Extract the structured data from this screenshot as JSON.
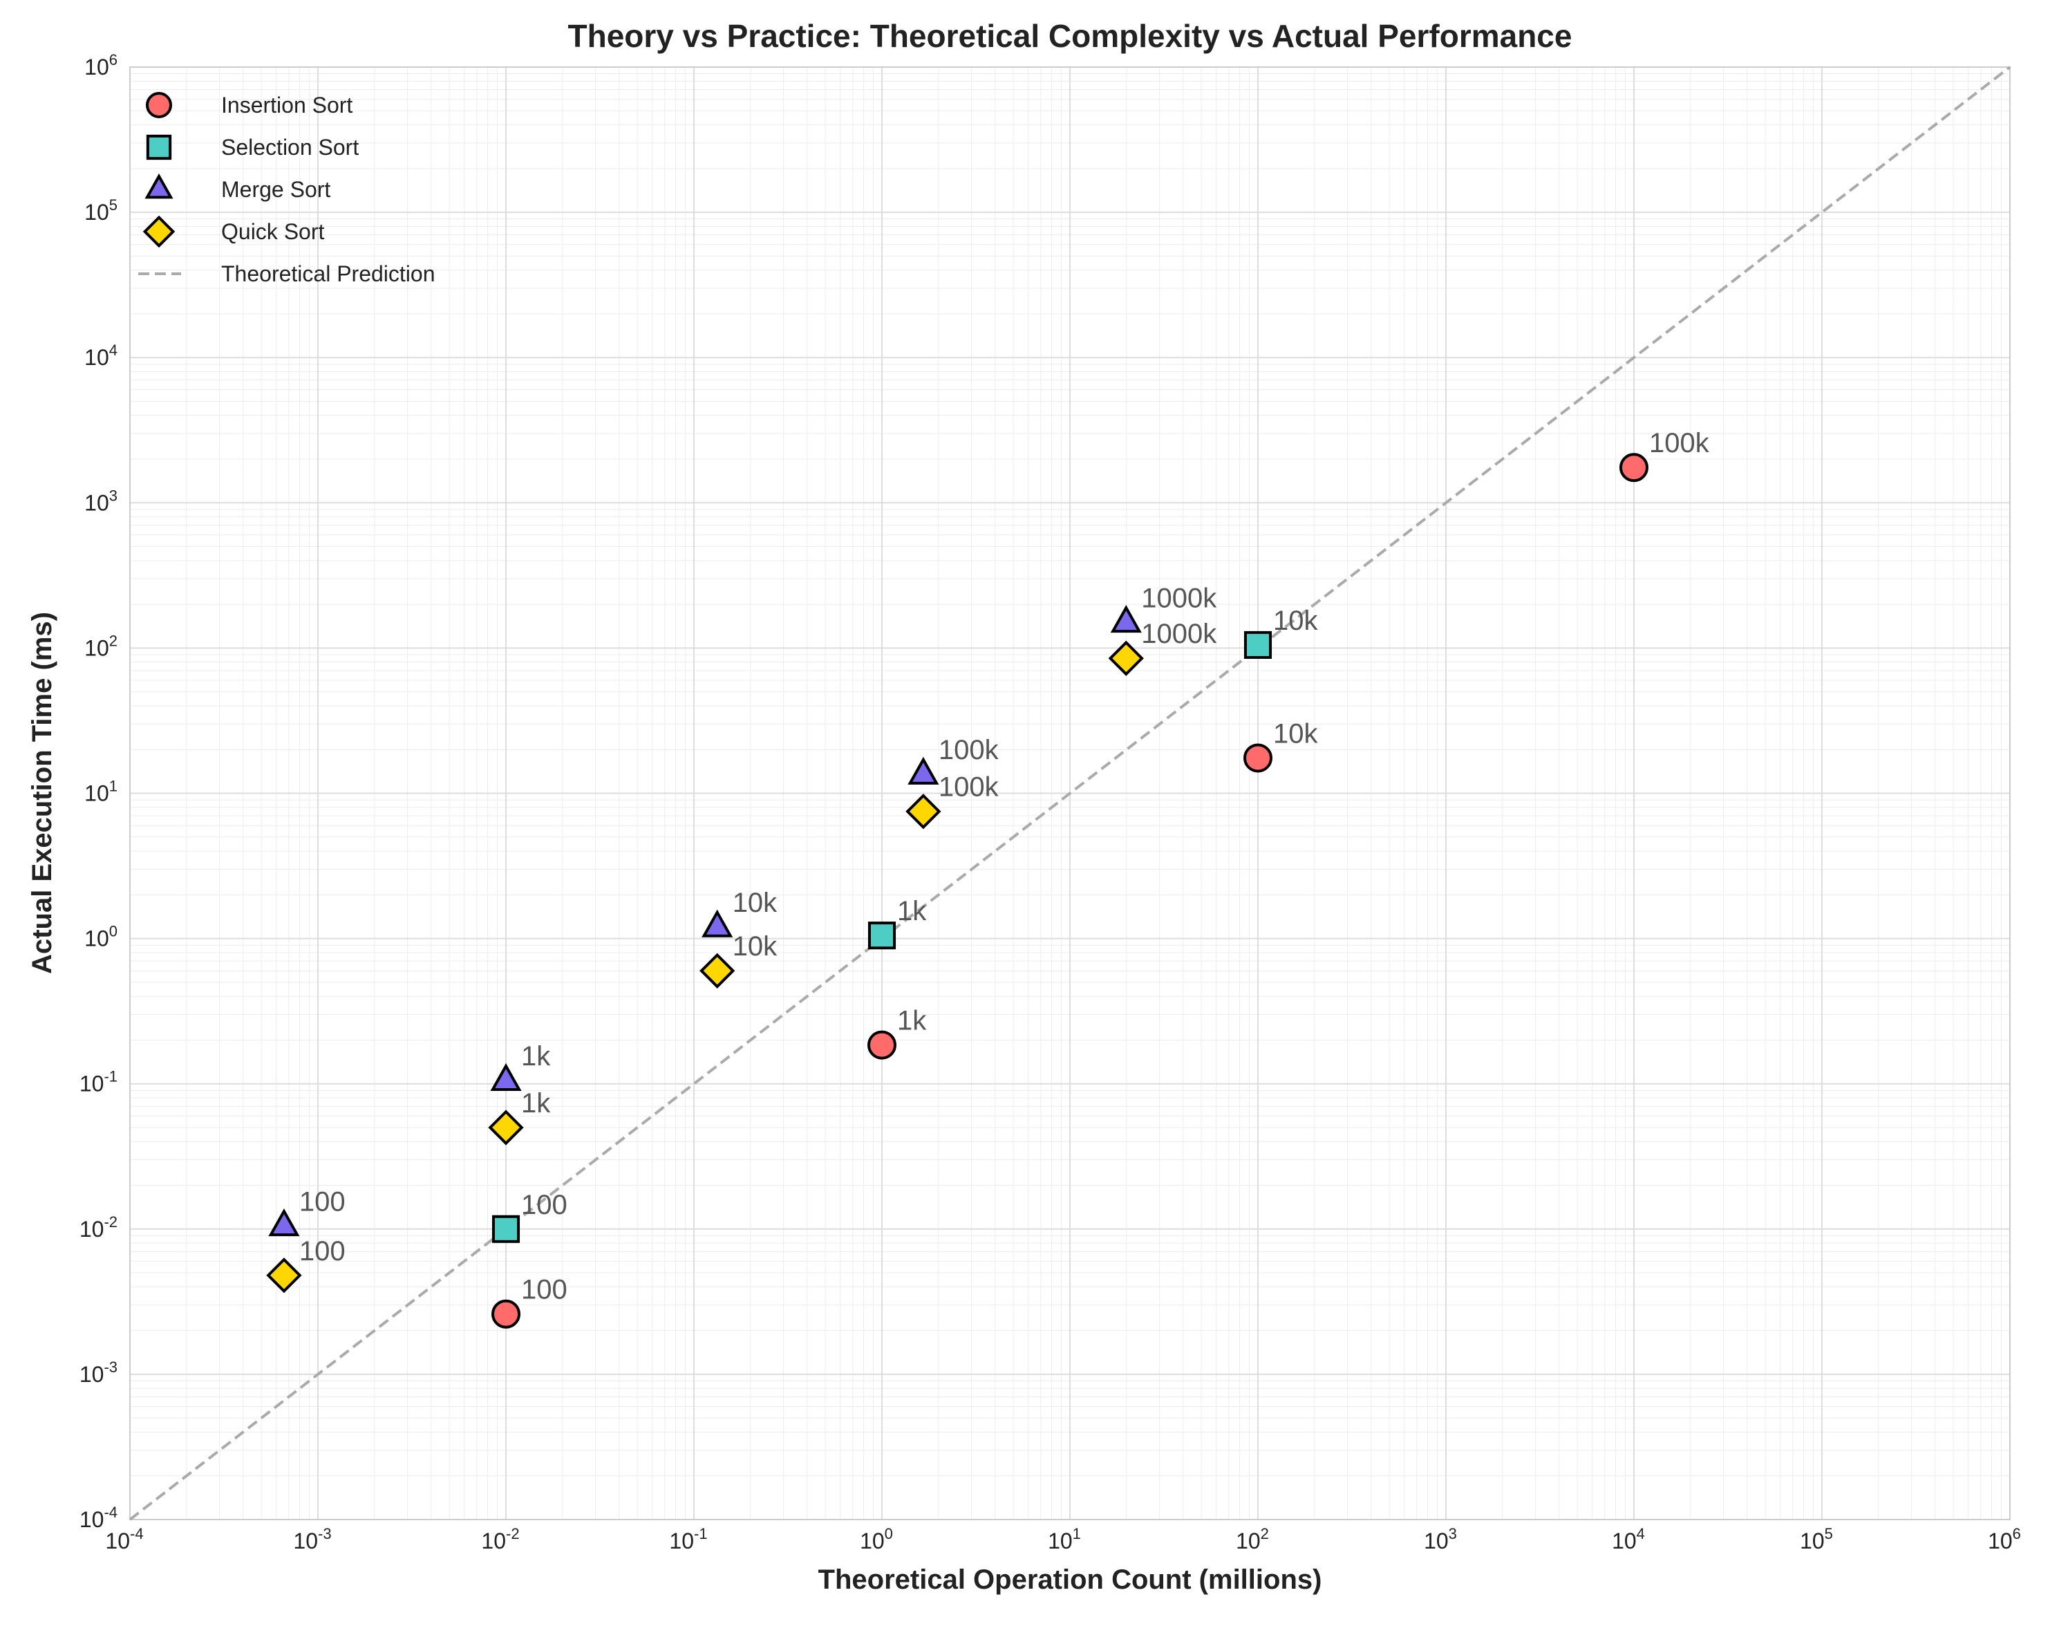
{
  "chart_data": {
    "type": "scatter",
    "title": "Theory vs Practice: Theoretical Complexity vs Actual Performance",
    "xlabel": "Theoretical Operation Count (millions)",
    "ylabel": "Actual Execution Time (ms)",
    "xscale": "log",
    "yscale": "log",
    "xlim": [
      0.0001,
      1000000
    ],
    "ylim": [
      0.0001,
      1000000
    ],
    "x_tick_exponents": [
      "-4",
      "-3",
      "-2",
      "-1",
      "0",
      "1",
      "2",
      "3",
      "4",
      "5",
      "6"
    ],
    "y_tick_exponents": [
      "-4",
      "-3",
      "-2",
      "-1",
      "0",
      "1",
      "2",
      "3",
      "4",
      "5",
      "6"
    ],
    "tick_base": "10",
    "grid": true,
    "legend_position": "top-left",
    "series": [
      {
        "name": "Insertion Sort",
        "marker": "circle",
        "color": "#FF6B6B",
        "points": [
          {
            "x": 0.01,
            "y": 0.0026,
            "label": "100"
          },
          {
            "x": 1,
            "y": 0.185,
            "label": "1k"
          },
          {
            "x": 100,
            "y": 17.5,
            "label": "10k"
          },
          {
            "x": 10000,
            "y": 1750,
            "label": "100k"
          }
        ]
      },
      {
        "name": "Selection Sort",
        "marker": "square",
        "color": "#4ECDC4",
        "points": [
          {
            "x": 0.01,
            "y": 0.01,
            "label": "100"
          },
          {
            "x": 1,
            "y": 1.05,
            "label": "1k"
          },
          {
            "x": 100,
            "y": 105,
            "label": "10k"
          }
        ]
      },
      {
        "name": "Merge Sort",
        "marker": "triangle",
        "color": "#7B68EE",
        "points": [
          {
            "x": 0.00066,
            "y": 0.0105,
            "label": "100"
          },
          {
            "x": 0.01,
            "y": 0.105,
            "label": "1k"
          },
          {
            "x": 0.133,
            "y": 1.2,
            "label": "10k"
          },
          {
            "x": 1.66,
            "y": 13.5,
            "label": "100k"
          },
          {
            "x": 19.9,
            "y": 150,
            "label": "1000k"
          }
        ]
      },
      {
        "name": "Quick Sort",
        "marker": "diamond",
        "color": "#FFD700",
        "points": [
          {
            "x": 0.00066,
            "y": 0.0048,
            "label": "100"
          },
          {
            "x": 0.01,
            "y": 0.05,
            "label": "1k"
          },
          {
            "x": 0.133,
            "y": 0.6,
            "label": "10k"
          },
          {
            "x": 1.66,
            "y": 7.5,
            "label": "100k"
          },
          {
            "x": 19.9,
            "y": 85,
            "label": "1000k"
          }
        ]
      }
    ],
    "reference_line": {
      "name": "Theoretical Prediction",
      "style": "dashed",
      "color": "#AAAAAA",
      "from": [
        0.0001,
        0.0001
      ],
      "to": [
        1000000,
        1000000
      ]
    }
  }
}
